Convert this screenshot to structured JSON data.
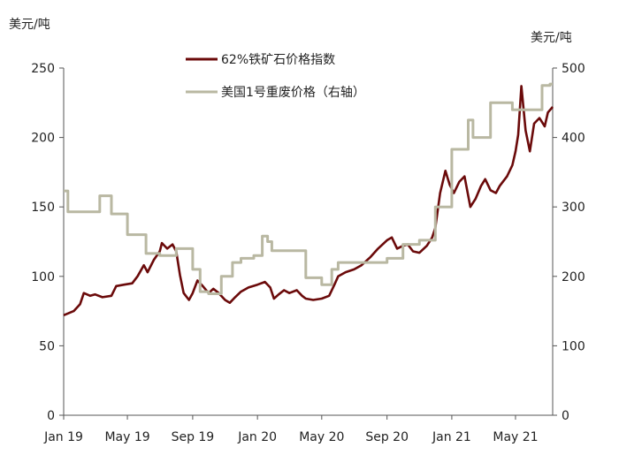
{
  "chart_data": {
    "type": "line",
    "left_axis_unit": "美元/吨",
    "right_axis_unit": "美元/吨",
    "ylim_left": [
      0,
      250
    ],
    "ylim_right": [
      0,
      500
    ],
    "yticks_left": [
      "0",
      "50",
      "100",
      "150",
      "200",
      "250"
    ],
    "yticks_right": [
      "0",
      "100",
      "200",
      "300",
      "400",
      "500"
    ],
    "xticks": [
      "Jan 19",
      "May 19",
      "Sep 19",
      "Jan 20",
      "May 20",
      "Sep 20",
      "Jan 21",
      "May 21"
    ],
    "x_start": "2019-01-01",
    "x_end": "2021-07-10",
    "grid": false,
    "legend_position": "top-center",
    "series": [
      {
        "name": "62%铁矿石价格指数",
        "axis": "left",
        "color": "#6b0a0a",
        "points": [
          [
            "2019-01-01",
            72
          ],
          [
            "2019-01-20",
            75
          ],
          [
            "2019-02-01",
            80
          ],
          [
            "2019-02-08",
            88
          ],
          [
            "2019-02-20",
            86
          ],
          [
            "2019-03-01",
            87
          ],
          [
            "2019-03-15",
            85
          ],
          [
            "2019-04-01",
            86
          ],
          [
            "2019-04-10",
            93
          ],
          [
            "2019-04-25",
            94
          ],
          [
            "2019-05-10",
            95
          ],
          [
            "2019-05-20",
            100
          ],
          [
            "2019-06-01",
            108
          ],
          [
            "2019-06-08",
            103
          ],
          [
            "2019-06-20",
            112
          ],
          [
            "2019-07-01",
            118
          ],
          [
            "2019-07-05",
            124
          ],
          [
            "2019-07-15",
            120
          ],
          [
            "2019-07-25",
            123
          ],
          [
            "2019-08-01",
            118
          ],
          [
            "2019-08-08",
            101
          ],
          [
            "2019-08-15",
            88
          ],
          [
            "2019-08-25",
            83
          ],
          [
            "2019-09-01",
            88
          ],
          [
            "2019-09-10",
            97
          ],
          [
            "2019-09-20",
            93
          ],
          [
            "2019-10-01",
            88
          ],
          [
            "2019-10-10",
            91
          ],
          [
            "2019-10-20",
            88
          ],
          [
            "2019-11-01",
            83
          ],
          [
            "2019-11-10",
            81
          ],
          [
            "2019-11-20",
            85
          ],
          [
            "2019-12-01",
            89
          ],
          [
            "2019-12-15",
            92
          ],
          [
            "2020-01-01",
            94
          ],
          [
            "2020-01-15",
            96
          ],
          [
            "2020-01-25",
            92
          ],
          [
            "2020-02-01",
            84
          ],
          [
            "2020-02-10",
            87
          ],
          [
            "2020-02-20",
            90
          ],
          [
            "2020-03-01",
            88
          ],
          [
            "2020-03-15",
            90
          ],
          [
            "2020-03-25",
            86
          ],
          [
            "2020-04-01",
            84
          ],
          [
            "2020-04-15",
            83
          ],
          [
            "2020-05-01",
            84
          ],
          [
            "2020-05-15",
            86
          ],
          [
            "2020-05-25",
            94
          ],
          [
            "2020-06-01",
            100
          ],
          [
            "2020-06-15",
            103
          ],
          [
            "2020-07-01",
            105
          ],
          [
            "2020-07-15",
            108
          ],
          [
            "2020-08-01",
            114
          ],
          [
            "2020-08-15",
            120
          ],
          [
            "2020-09-01",
            126
          ],
          [
            "2020-09-10",
            128
          ],
          [
            "2020-09-20",
            120
          ],
          [
            "2020-10-01",
            122
          ],
          [
            "2020-10-10",
            123
          ],
          [
            "2020-10-20",
            118
          ],
          [
            "2020-11-01",
            117
          ],
          [
            "2020-11-15",
            122
          ],
          [
            "2020-11-25",
            128
          ],
          [
            "2020-12-01",
            135
          ],
          [
            "2020-12-10",
            160
          ],
          [
            "2020-12-20",
            176
          ],
          [
            "2020-12-28",
            166
          ],
          [
            "2021-01-05",
            160
          ],
          [
            "2021-01-15",
            168
          ],
          [
            "2021-01-25",
            172
          ],
          [
            "2021-02-01",
            158
          ],
          [
            "2021-02-05",
            150
          ],
          [
            "2021-02-15",
            156
          ],
          [
            "2021-02-25",
            165
          ],
          [
            "2021-03-05",
            170
          ],
          [
            "2021-03-15",
            162
          ],
          [
            "2021-03-25",
            160
          ],
          [
            "2021-04-01",
            165
          ],
          [
            "2021-04-15",
            172
          ],
          [
            "2021-04-25",
            180
          ],
          [
            "2021-05-01",
            190
          ],
          [
            "2021-05-06",
            202
          ],
          [
            "2021-05-12",
            237
          ],
          [
            "2021-05-15",
            225
          ],
          [
            "2021-05-20",
            205
          ],
          [
            "2021-05-28",
            190
          ],
          [
            "2021-06-05",
            210
          ],
          [
            "2021-06-15",
            214
          ],
          [
            "2021-06-25",
            208
          ],
          [
            "2021-07-01",
            218
          ],
          [
            "2021-07-10",
            222
          ]
        ]
      },
      {
        "name": "美国1号重废价格（右轴）",
        "axis": "right",
        "color": "#b9b8a2",
        "points": [
          [
            "2019-01-01",
            323
          ],
          [
            "2019-01-09",
            293
          ],
          [
            "2019-03-10",
            316
          ],
          [
            "2019-04-01",
            290
          ],
          [
            "2019-05-01",
            260
          ],
          [
            "2019-06-05",
            233
          ],
          [
            "2019-07-01",
            230
          ],
          [
            "2019-08-01",
            240
          ],
          [
            "2019-09-01",
            210
          ],
          [
            "2019-09-15",
            178
          ],
          [
            "2019-10-01",
            175
          ],
          [
            "2019-10-25",
            200
          ],
          [
            "2019-11-15",
            220
          ],
          [
            "2019-12-01",
            226
          ],
          [
            "2019-12-25",
            230
          ],
          [
            "2020-01-10",
            258
          ],
          [
            "2020-01-20",
            250
          ],
          [
            "2020-01-28",
            237
          ],
          [
            "2020-03-01",
            237
          ],
          [
            "2020-04-01",
            198
          ],
          [
            "2020-05-01",
            188
          ],
          [
            "2020-05-20",
            210
          ],
          [
            "2020-06-01",
            220
          ],
          [
            "2020-08-01",
            220
          ],
          [
            "2020-09-01",
            226
          ],
          [
            "2020-10-01",
            246
          ],
          [
            "2020-11-01",
            252
          ],
          [
            "2020-12-01",
            300
          ],
          [
            "2021-01-01",
            383
          ],
          [
            "2021-02-01",
            425
          ],
          [
            "2021-02-10",
            400
          ],
          [
            "2021-03-15",
            450
          ],
          [
            "2021-04-25",
            440
          ],
          [
            "2021-06-20",
            475
          ],
          [
            "2021-07-05",
            477
          ]
        ]
      }
    ]
  }
}
